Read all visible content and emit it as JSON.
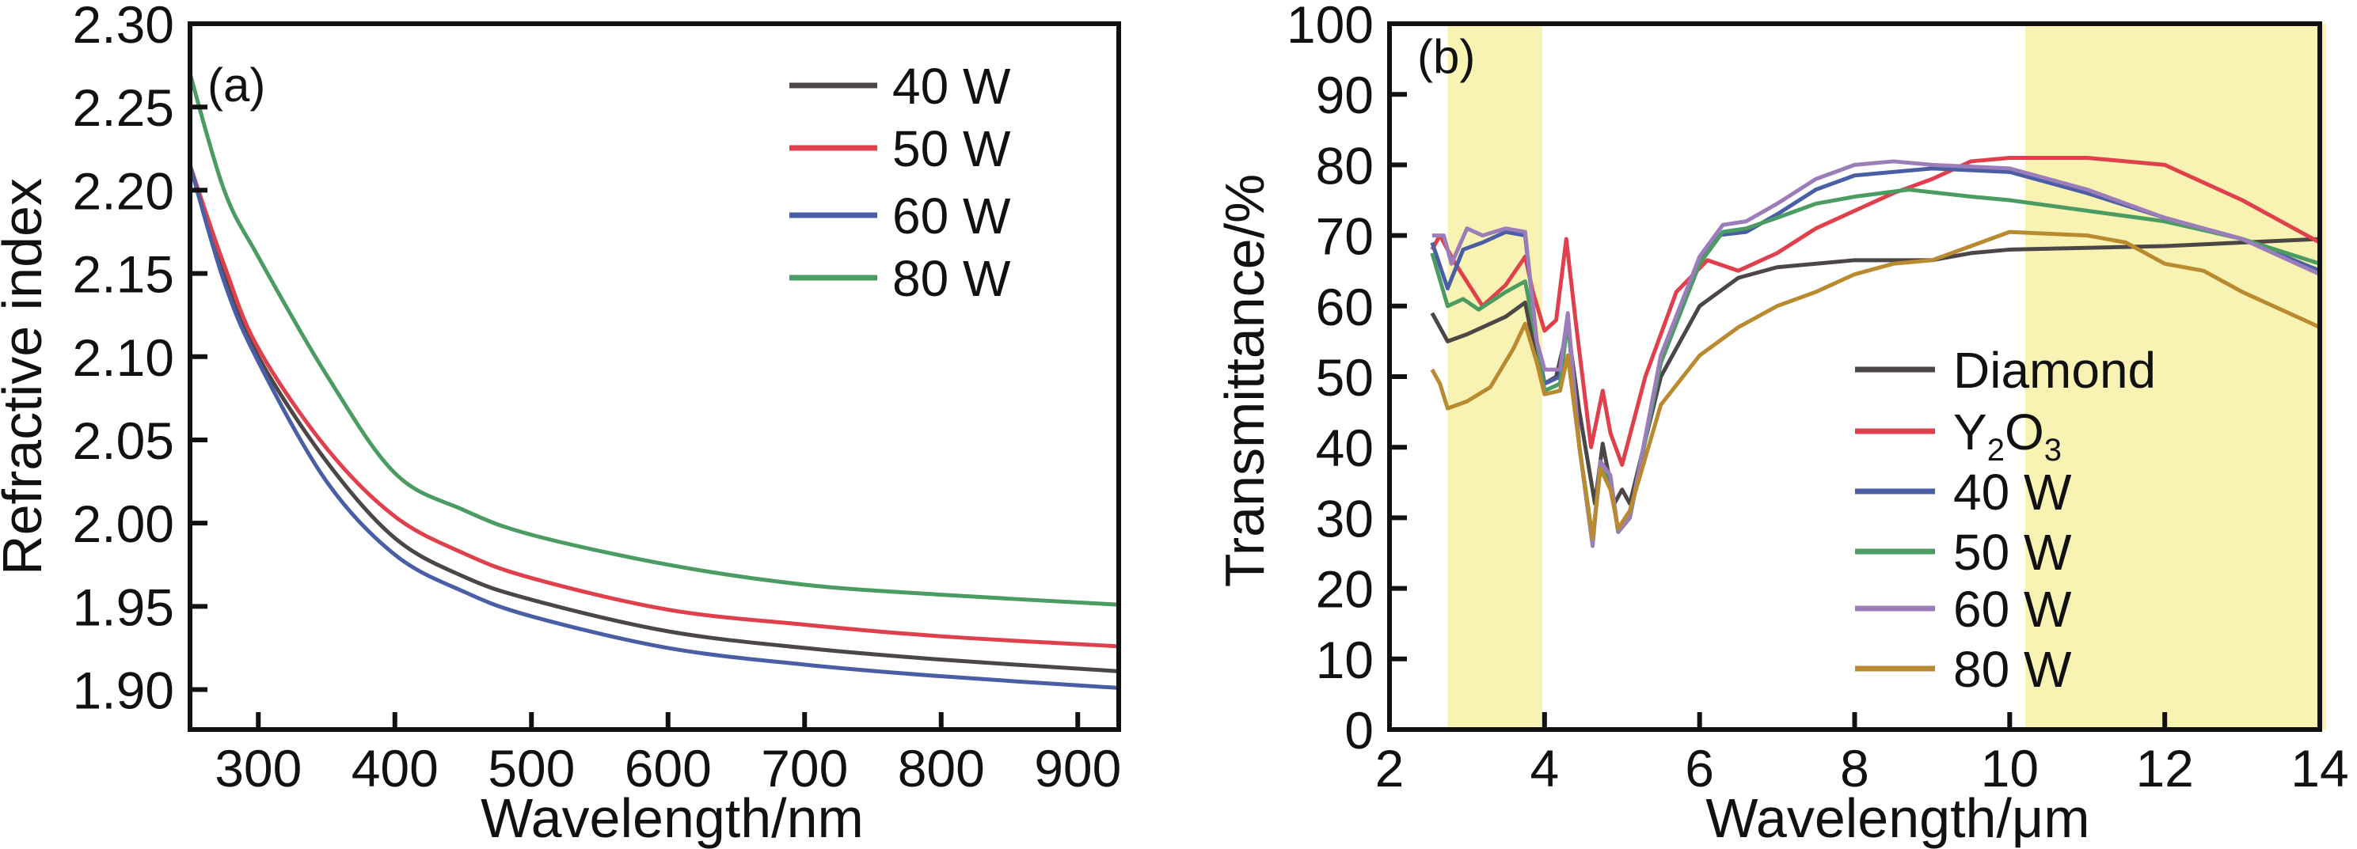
{
  "chart_data": [
    {
      "type": "line",
      "panel_label": "(a)",
      "xlabel": "Wavelength/nm",
      "ylabel": "Refractive index",
      "xlim": [
        250,
        930
      ],
      "ylim": [
        1.876,
        2.3
      ],
      "xticks": [
        "300",
        "400",
        "500",
        "600",
        "700",
        "800",
        "900"
      ],
      "yticks": [
        "1.90",
        "1.95",
        "2.00",
        "2.05",
        "2.10",
        "2.15",
        "2.20",
        "2.25",
        "2.30"
      ],
      "grid": false,
      "legend_position": "top-right",
      "x": [
        250,
        275,
        300,
        350,
        400,
        450,
        500,
        600,
        700,
        800,
        930
      ],
      "series": [
        {
          "name": "40 W",
          "color": "#4d4646",
          "values": [
            2.215,
            2.15,
            2.1,
            2.037,
            1.991,
            1.968,
            1.954,
            1.935,
            1.925,
            1.918,
            1.911
          ]
        },
        {
          "name": "50 W",
          "color": "#e0404c",
          "values": [
            2.215,
            2.155,
            2.105,
            2.045,
            2.004,
            1.982,
            1.967,
            1.948,
            1.939,
            1.932,
            1.926
          ]
        },
        {
          "name": "60 W",
          "color": "#4a5ea6",
          "values": [
            2.215,
            2.145,
            2.097,
            2.025,
            1.981,
            1.959,
            1.944,
            1.925,
            1.915,
            1.908,
            1.901
          ]
        },
        {
          "name": "80 W",
          "color": "#4a9c62",
          "values": [
            2.27,
            2.2,
            2.16,
            2.089,
            2.03,
            2.008,
            1.993,
            1.975,
            1.963,
            1.957,
            1.951
          ]
        }
      ]
    },
    {
      "type": "line",
      "panel_label": "(b)",
      "xlabel": "Wavelength/μm",
      "ylabel": "Transmittance/%",
      "xlim": [
        2,
        14
      ],
      "ylim": [
        0,
        100
      ],
      "xticks": [
        "2",
        "4",
        "6",
        "8",
        "10",
        "12",
        "14"
      ],
      "yticks": [
        "0",
        "10",
        "20",
        "30",
        "40",
        "50",
        "60",
        "70",
        "80",
        "90",
        "100"
      ],
      "grid": false,
      "legend_position": "bottom-right",
      "highlight_bands": [
        [
          2.75,
          3.97
        ],
        [
          10.2,
          14
        ],
        "#f8f3b3"
      ],
      "series": [
        {
          "name": "Diamond",
          "color": "#4d4646",
          "x": [
            2.55,
            2.75,
            3.0,
            3.5,
            3.75,
            3.85,
            4.0,
            4.15,
            4.3,
            4.45,
            4.65,
            4.75,
            4.9,
            5.0,
            5.1,
            5.5,
            6.0,
            6.5,
            7.0,
            8.0,
            9.0,
            9.5,
            10.0,
            12.0,
            14.0
          ],
          "values": [
            59,
            55,
            56,
            58.5,
            60.5,
            55,
            49,
            50,
            57,
            45,
            32,
            40.5,
            32,
            34,
            32,
            50,
            60,
            64,
            65.5,
            66.5,
            66.5,
            67.5,
            68,
            68.5,
            69.5
          ]
        },
        {
          "name": "Y2O3",
          "color": "#e0404c",
          "x": [
            2.55,
            2.65,
            2.85,
            3.2,
            3.5,
            3.75,
            3.85,
            4.0,
            4.15,
            4.28,
            4.4,
            4.6,
            4.75,
            4.85,
            5.0,
            5.3,
            5.7,
            6.1,
            6.5,
            7.0,
            7.5,
            8.0,
            8.5,
            9.0,
            9.5,
            10.0,
            11.0,
            12.0,
            13.0,
            14.0
          ],
          "values": [
            68,
            70,
            66,
            60,
            63,
            67,
            62,
            56.5,
            58,
            69.5,
            58,
            40,
            48,
            42,
            37.5,
            50,
            62,
            66.5,
            65,
            67.5,
            71,
            73.5,
            76,
            78,
            80.5,
            81,
            81,
            80,
            75,
            69
          ]
        },
        {
          "name": "40 W",
          "color": "#4a5ea6",
          "x": [
            2.55,
            2.75,
            2.95,
            3.2,
            3.5,
            3.75,
            3.9,
            4.0,
            4.2,
            4.3,
            4.45,
            4.62,
            4.72,
            4.85,
            4.95,
            5.1,
            5.5,
            6.0,
            6.2,
            6.6,
            7.0,
            7.5,
            8.0,
            9.0,
            10.0,
            11.0,
            12.0,
            13.0,
            14.0
          ],
          "values": [
            69,
            62.5,
            68,
            69,
            70.5,
            70,
            55,
            49,
            50,
            58,
            40,
            27,
            37,
            35,
            28,
            30,
            52,
            66,
            70,
            70.5,
            73,
            76.5,
            78.5,
            79.5,
            79,
            76,
            72.5,
            69.5,
            65
          ]
        },
        {
          "name": "50 W",
          "color": "#4a9c62",
          "x": [
            2.55,
            2.75,
            2.95,
            3.15,
            3.5,
            3.75,
            3.9,
            4.0,
            4.2,
            4.3,
            4.45,
            4.62,
            4.72,
            4.85,
            4.95,
            5.1,
            5.5,
            6.0,
            6.3,
            6.6,
            7.0,
            7.5,
            8.0,
            8.7,
            9.5,
            10.0,
            11.0,
            12.0,
            13.0,
            14.0
          ],
          "values": [
            67.5,
            60,
            61,
            59.5,
            62,
            63.5,
            55,
            48,
            49,
            58,
            40,
            27,
            37,
            35,
            28,
            30,
            52,
            66,
            70.5,
            71,
            72.5,
            74.5,
            75.5,
            76.5,
            75.5,
            75,
            73.5,
            72,
            69.5,
            66
          ]
        },
        {
          "name": "60 W",
          "color": "#9b7db9",
          "x": [
            2.55,
            2.7,
            2.8,
            3.0,
            3.2,
            3.5,
            3.75,
            3.9,
            4.0,
            4.2,
            4.3,
            4.45,
            4.62,
            4.72,
            4.85,
            4.95,
            5.1,
            5.5,
            6.0,
            6.3,
            6.6,
            7.0,
            7.5,
            8.0,
            8.5,
            9.0,
            10.0,
            11.0,
            12.0,
            13.0,
            14.0
          ],
          "values": [
            70,
            70,
            66,
            71,
            70,
            71,
            70.5,
            55,
            51,
            51,
            59,
            40,
            26,
            38,
            36,
            28,
            30,
            53,
            67,
            71.5,
            72,
            74.5,
            78,
            80,
            80.5,
            80,
            79.5,
            76.5,
            72.5,
            69.5,
            64.5
          ]
        },
        {
          "name": "80 W",
          "color": "#b98a30",
          "x": [
            2.55,
            2.65,
            2.75,
            3.0,
            3.3,
            3.6,
            3.75,
            3.9,
            4.0,
            4.2,
            4.3,
            4.45,
            4.62,
            4.72,
            4.85,
            4.95,
            5.1,
            5.5,
            6.0,
            6.5,
            7.0,
            7.5,
            8.0,
            8.5,
            9.0,
            9.5,
            10.0,
            11.0,
            11.5,
            12.0,
            12.5,
            13.0,
            14.0
          ],
          "values": [
            51,
            49,
            45.5,
            46.5,
            48.5,
            54,
            57.5,
            52,
            47.5,
            48,
            53,
            40,
            27,
            37,
            34,
            28.5,
            31,
            46,
            53,
            57,
            60,
            62,
            64.5,
            66,
            66.5,
            68.5,
            70.5,
            70,
            69,
            66,
            65,
            62,
            57
          ]
        }
      ]
    }
  ]
}
